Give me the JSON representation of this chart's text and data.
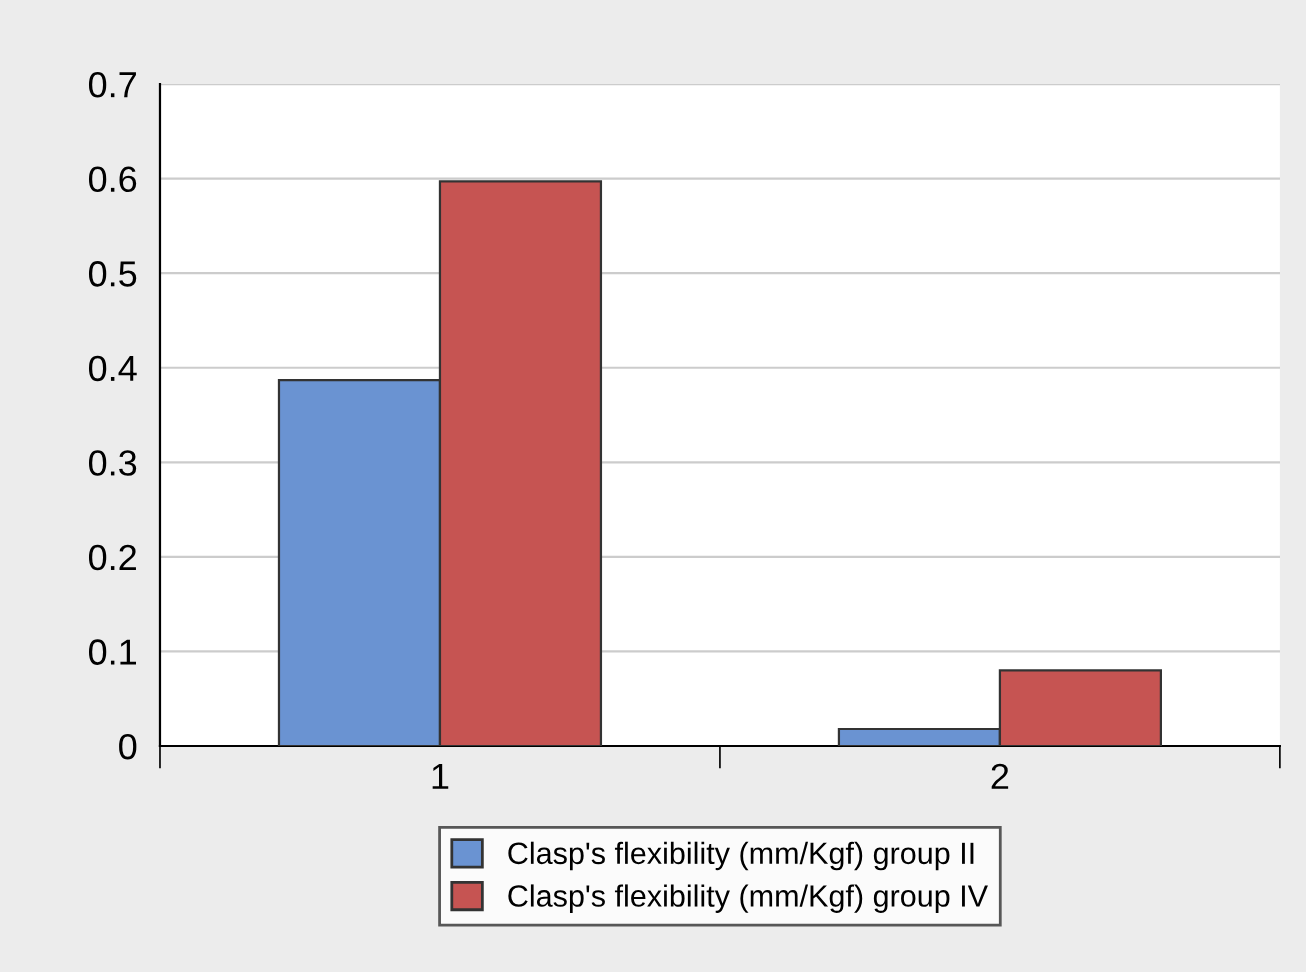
{
  "chart_data": {
    "type": "bar",
    "categories": [
      "1",
      "2"
    ],
    "series": [
      {
        "name": "Clasp's flexibility (mm/Kgf) group II",
        "color": "#6a93d2",
        "values": [
          0.387,
          0.018
        ]
      },
      {
        "name": "Clasp's flexibility (mm/Kgf) group IV",
        "color": "#c65452",
        "values": [
          0.597,
          0.08
        ]
      }
    ],
    "ylim": [
      0,
      0.7
    ],
    "yticks": [
      0,
      0.1,
      0.2,
      0.3,
      0.4,
      0.5,
      0.6,
      0.7
    ],
    "grid": "y",
    "legend": "bottom"
  }
}
